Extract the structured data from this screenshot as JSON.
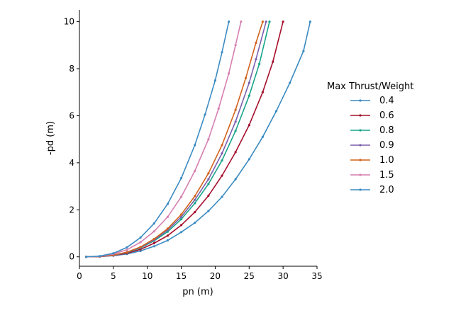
{
  "chart_data": {
    "type": "line",
    "title": "",
    "xlabel": "pn (m)",
    "ylabel": "-pd (m)",
    "xlim": [
      0,
      35
    ],
    "ylim": [
      -0.4,
      10.5
    ],
    "xticks": [
      0,
      5,
      10,
      15,
      20,
      25,
      30,
      35
    ],
    "yticks": [
      0,
      2,
      4,
      6,
      8,
      10
    ],
    "grid": false,
    "legend": {
      "title": "Max Thrust/Weight",
      "placement": "right"
    },
    "series": [
      {
        "name": "0.4",
        "color": "#3b8bc2",
        "x": [
          1,
          3,
          5,
          7,
          9,
          11,
          13,
          15,
          17,
          19,
          21,
          23,
          25,
          27,
          29,
          31,
          33,
          34
        ],
        "y": [
          0.0,
          0.01,
          0.05,
          0.12,
          0.25,
          0.45,
          0.7,
          1.05,
          1.45,
          1.95,
          2.55,
          3.3,
          4.15,
          5.1,
          6.2,
          7.4,
          8.75,
          10.0
        ]
      },
      {
        "name": "0.6",
        "color": "#a50f2c",
        "x": [
          1,
          3,
          5,
          7,
          9,
          11,
          13,
          15,
          17,
          19,
          21,
          23,
          25,
          27,
          28.5,
          30
        ],
        "y": [
          0.0,
          0.01,
          0.06,
          0.15,
          0.32,
          0.58,
          0.9,
          1.35,
          1.9,
          2.6,
          3.45,
          4.45,
          5.6,
          7.0,
          8.3,
          10.0
        ]
      },
      {
        "name": "0.8",
        "color": "#19a38a",
        "x": [
          1,
          3,
          5,
          7,
          9,
          11,
          13,
          15,
          17,
          19,
          21,
          23,
          25,
          26.5,
          28
        ],
        "y": [
          0.0,
          0.01,
          0.07,
          0.18,
          0.38,
          0.68,
          1.07,
          1.6,
          2.28,
          3.1,
          4.1,
          5.35,
          6.85,
          8.2,
          10.0
        ]
      },
      {
        "name": "0.9",
        "color": "#7b5fac",
        "x": [
          1,
          3,
          5,
          7,
          9,
          11,
          13,
          15,
          17,
          19,
          21,
          23,
          25,
          26,
          27.5
        ],
        "y": [
          0.0,
          0.01,
          0.07,
          0.19,
          0.4,
          0.72,
          1.14,
          1.7,
          2.42,
          3.3,
          4.4,
          5.75,
          7.4,
          8.4,
          10.0
        ]
      },
      {
        "name": "1.0",
        "color": "#d2631c",
        "x": [
          1,
          3,
          5,
          7,
          9,
          11,
          13,
          15,
          17,
          19,
          21,
          23,
          24.5,
          26,
          27
        ],
        "y": [
          0.0,
          0.01,
          0.08,
          0.2,
          0.42,
          0.76,
          1.2,
          1.8,
          2.58,
          3.55,
          4.75,
          6.25,
          7.6,
          9.1,
          10.0
        ]
      },
      {
        "name": "1.5",
        "color": "#d57fb0",
        "x": [
          1,
          3,
          5,
          7,
          9,
          11,
          13,
          15,
          17,
          19,
          20.5,
          22,
          23,
          23.8
        ],
        "y": [
          0.0,
          0.02,
          0.12,
          0.3,
          0.62,
          1.08,
          1.7,
          2.55,
          3.65,
          5.0,
          6.3,
          7.8,
          9.0,
          10.0
        ]
      },
      {
        "name": "2.0",
        "color": "#3b8bc2",
        "x": [
          1,
          3,
          5,
          7,
          9,
          11,
          13,
          15,
          17,
          18.5,
          20,
          21,
          22
        ],
        "y": [
          0.0,
          0.03,
          0.15,
          0.4,
          0.82,
          1.42,
          2.25,
          3.35,
          4.75,
          6.05,
          7.5,
          8.7,
          10.0
        ]
      }
    ]
  }
}
